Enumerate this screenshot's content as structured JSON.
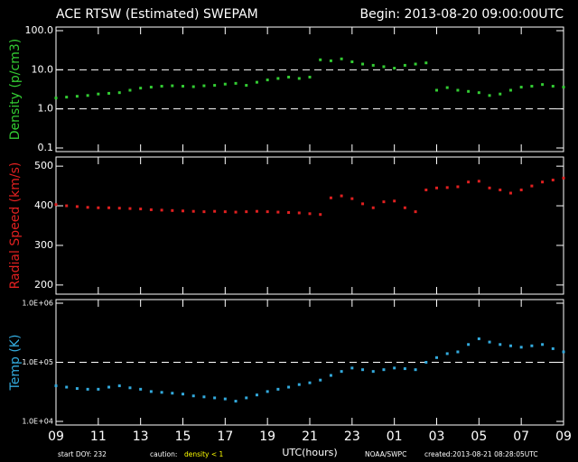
{
  "header": {
    "title": "ACE RTSW (Estimated) SWEPAM",
    "begin": "Begin: 2013-08-20 09:00:00UTC"
  },
  "chart_data": [
    {
      "type": "scatter",
      "ylabel": "Density (p/cm3)",
      "log_y": true,
      "color": "#33cc33",
      "ylim": [
        0.1,
        100
      ],
      "yticks": [
        0.1,
        {
          "value": 1,
          "label": "1.0"
        },
        {
          "value": 10,
          "label": "10.0"
        },
        {
          "value": 100,
          "label": "100.0"
        }
      ],
      "hlines": [
        1,
        10
      ],
      "xlim": [
        0,
        24
      ],
      "x": [
        0,
        0.5,
        1,
        1.5,
        2,
        2.5,
        3,
        3.5,
        4,
        4.5,
        5,
        5.5,
        6,
        6.5,
        7,
        7.5,
        8,
        8.5,
        9,
        9.5,
        10,
        10.5,
        11,
        11.5,
        12,
        12.5,
        13,
        13.5,
        14,
        14.5,
        15,
        15.5,
        16,
        16.5,
        17,
        17.5,
        18,
        18.5,
        19,
        19.5,
        20,
        20.5,
        21,
        21.5,
        22,
        22.5,
        23,
        23.5,
        24
      ],
      "values": [
        1.9,
        2.0,
        2.1,
        2.2,
        2.4,
        2.5,
        2.6,
        3.0,
        3.4,
        3.6,
        3.8,
        3.9,
        3.8,
        3.7,
        3.9,
        4.0,
        4.3,
        4.5,
        4.0,
        4.8,
        5.5,
        6.0,
        6.5,
        6.0,
        6.5,
        18,
        17,
        19,
        16,
        14,
        13,
        12,
        11,
        13,
        14,
        15,
        3.0,
        3.5,
        3.0,
        2.8,
        2.6,
        2.2,
        2.4,
        3.0,
        3.6,
        3.8,
        4.2,
        3.8,
        3.6
      ]
    },
    {
      "type": "scatter",
      "ylabel": "Radial Speed (km/s)",
      "log_y": false,
      "color": "#e02020",
      "ylim": [
        186,
        514
      ],
      "yticks": [
        200,
        300,
        400,
        500
      ],
      "xlim": [
        0,
        24
      ],
      "x": [
        0,
        0.5,
        1,
        1.5,
        2,
        2.5,
        3,
        3.5,
        4,
        4.5,
        5,
        5.5,
        6,
        6.5,
        7,
        7.5,
        8,
        8.5,
        9,
        9.5,
        10,
        10.5,
        11,
        11.5,
        12,
        12.5,
        13,
        13.5,
        14,
        14.5,
        15,
        15.5,
        16,
        16.5,
        17,
        17.5,
        18,
        18.5,
        19,
        19.5,
        20,
        20.5,
        21,
        21.5,
        22,
        22.5,
        23,
        23.5,
        24
      ],
      "values": [
        403,
        400,
        398,
        396,
        395,
        395,
        394,
        393,
        392,
        390,
        389,
        388,
        387,
        386,
        385,
        386,
        385,
        384,
        385,
        386,
        385,
        384,
        383,
        382,
        380,
        378,
        420,
        425,
        418,
        405,
        395,
        410,
        412,
        395,
        385,
        440,
        445,
        446,
        448,
        460,
        462,
        445,
        440,
        432,
        440,
        450,
        460,
        465,
        470
      ]
    },
    {
      "type": "scatter",
      "ylabel": "Temp (K)",
      "log_y": true,
      "color": "#33aadd",
      "ylim": [
        10000,
        1000000
      ],
      "yticks": [
        {
          "value": 10000,
          "label": "1.0E+04"
        },
        {
          "value": 100000,
          "label": "1.0E+05"
        },
        {
          "value": 1000000,
          "label": "1.0E+06"
        }
      ],
      "hlines": [
        100000
      ],
      "xlim": [
        0,
        24
      ],
      "xticks": [
        {
          "value": 0,
          "label": "09"
        },
        {
          "value": 2,
          "label": "11"
        },
        {
          "value": 4,
          "label": "13"
        },
        {
          "value": 6,
          "label": "15"
        },
        {
          "value": 8,
          "label": "17"
        },
        {
          "value": 10,
          "label": "19"
        },
        {
          "value": 12,
          "label": "21"
        },
        {
          "value": 14,
          "label": "23"
        },
        {
          "value": 16,
          "label": "01"
        },
        {
          "value": 18,
          "label": "03"
        },
        {
          "value": 20,
          "label": "05"
        },
        {
          "value": 22,
          "label": "07"
        },
        {
          "value": 24,
          "label": "09"
        }
      ],
      "xlabel": "UTC(hours)",
      "x": [
        0,
        0.5,
        1,
        1.5,
        2,
        2.5,
        3,
        3.5,
        4,
        4.5,
        5,
        5.5,
        6,
        6.5,
        7,
        7.5,
        8,
        8.5,
        9,
        9.5,
        10,
        10.5,
        11,
        11.5,
        12,
        12.5,
        13,
        13.5,
        14,
        14.5,
        15,
        15.5,
        16,
        16.5,
        17,
        17.5,
        18,
        18.5,
        19,
        19.5,
        20,
        20.5,
        21,
        21.5,
        22,
        22.5,
        23,
        23.5,
        24
      ],
      "values": [
        40000,
        38000,
        36000,
        35000,
        35000,
        38000,
        40000,
        37000,
        35000,
        32000,
        31000,
        30000,
        29000,
        27000,
        26000,
        25000,
        24000,
        22000,
        25000,
        28000,
        32000,
        35000,
        38000,
        42000,
        45000,
        50000,
        60000,
        70000,
        80000,
        75000,
        70000,
        75000,
        80000,
        78000,
        75000,
        100000,
        120000,
        140000,
        150000,
        200000,
        250000,
        220000,
        200000,
        190000,
        180000,
        190000,
        200000,
        170000,
        150000
      ]
    }
  ],
  "footer": {
    "start": "start DOY: 232",
    "caution": "caution:",
    "caution_note": "density < 1",
    "source": "NOAA/SWPC",
    "created": "created:2013-08-21 08:28:05UTC"
  }
}
